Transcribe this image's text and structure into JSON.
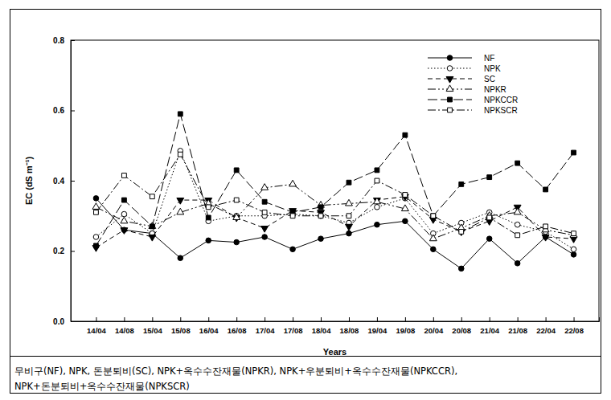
{
  "chart_data": {
    "type": "line",
    "x_label": "Years",
    "y_label": "EC (dS m⁻¹)",
    "categories": [
      "14/04",
      "14/08",
      "15/04",
      "15/08",
      "16/04",
      "16/08",
      "17/04",
      "17/08",
      "18/04",
      "18/08",
      "19/04",
      "19/08",
      "20/04",
      "20/08",
      "21/04",
      "21/08",
      "22/04",
      "22/08"
    ],
    "ylim": [
      0,
      0.8
    ],
    "yticks": [
      {
        "value": 0,
        "label": "0.0"
      },
      {
        "value": 0.2,
        "label": "0.2"
      },
      {
        "value": 0.4,
        "label": "0.4"
      },
      {
        "value": 0.6,
        "label": "0.6"
      },
      {
        "value": 0.8,
        "label": "0.8"
      }
    ],
    "grid": false,
    "legend": "upper right",
    "series": [
      {
        "name": "NF",
        "color": "#000000",
        "marker": "circle",
        "line_style": "solid",
        "values": [
          0.35,
          0.26,
          0.25,
          0.18,
          0.23,
          0.225,
          0.24,
          0.205,
          0.235,
          0.25,
          0.275,
          0.285,
          0.205,
          0.15,
          0.235,
          0.165,
          0.24,
          0.19
        ]
      },
      {
        "name": "NPK",
        "color": "#000000",
        "marker": "circle-open",
        "line_style": "dotted",
        "values": [
          0.24,
          0.305,
          0.25,
          0.485,
          0.285,
          0.3,
          0.3,
          0.305,
          0.3,
          0.28,
          0.325,
          0.35,
          0.25,
          0.28,
          0.31,
          0.275,
          0.255,
          0.205
        ]
      },
      {
        "name": "SC",
        "color": "#000000",
        "marker": "triangle-down",
        "line_style": "dashed",
        "values": [
          0.21,
          0.26,
          0.24,
          0.345,
          0.345,
          0.295,
          0.265,
          0.315,
          0.31,
          0.27,
          0.345,
          0.355,
          0.29,
          0.255,
          0.285,
          0.325,
          0.24,
          0.235
        ]
      },
      {
        "name": "NPKR",
        "color": "#000000",
        "marker": "triangle-up-open",
        "line_style": "dash-dot-dot",
        "values": [
          0.325,
          0.285,
          0.27,
          0.31,
          0.335,
          0.295,
          0.38,
          0.39,
          0.33,
          0.335,
          0.34,
          0.32,
          0.235,
          0.265,
          0.3,
          0.31,
          0.26,
          0.245
        ]
      },
      {
        "name": "NPKCCR",
        "color": "#000000",
        "marker": "square",
        "line_style": "long-dash",
        "values": [
          0.215,
          0.345,
          0.27,
          0.59,
          0.295,
          0.43,
          0.34,
          0.31,
          0.325,
          0.395,
          0.43,
          0.53,
          0.3,
          0.39,
          0.41,
          0.45,
          0.375,
          0.48
        ]
      },
      {
        "name": "NPKSCR",
        "color": "#000000",
        "marker": "square-open",
        "line_style": "dash-dot",
        "values": [
          0.31,
          0.415,
          0.355,
          0.475,
          0.325,
          0.345,
          0.31,
          0.3,
          0.3,
          0.3,
          0.4,
          0.36,
          0.3,
          0.255,
          0.295,
          0.245,
          0.27,
          0.25
        ]
      }
    ],
    "caption": [
      "무비구(NF), NPK, 돈분퇴비(SC), NPK+옥수수잔재물(NPKR), NPK+우분퇴비+옥수수잔재물(NPKCCR),",
      "NPK+돈분퇴비+옥수수잔재물(NPKSCR)"
    ]
  }
}
